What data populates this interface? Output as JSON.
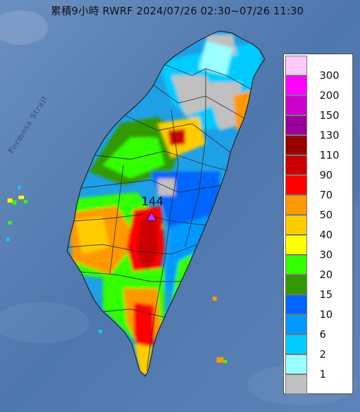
{
  "title": "累積9小時 RWRF 2024/07/26 02:30~07/26 11:30",
  "max_marker": {
    "value": "144"
  },
  "strait_label": "Formosa Strait",
  "colors": {
    "sea": "#4f78ad",
    "land_base": "#1ea0e6",
    "county_lines": "#2b2b2b"
  },
  "legend": {
    "items": [
      {
        "label": "300",
        "color": "#ffc8ff"
      },
      {
        "label": "200",
        "color": "#ff00ff"
      },
      {
        "label": "150",
        "color": "#cc00cc"
      },
      {
        "label": "130",
        "color": "#990099"
      },
      {
        "label": "110",
        "color": "#990000"
      },
      {
        "label": "90",
        "color": "#cc0000"
      },
      {
        "label": "70",
        "color": "#ff0000"
      },
      {
        "label": "50",
        "color": "#ff9900"
      },
      {
        "label": "40",
        "color": "#ffcc00"
      },
      {
        "label": "30",
        "color": "#ffff00"
      },
      {
        "label": "20",
        "color": "#33ff00"
      },
      {
        "label": "15",
        "color": "#339900"
      },
      {
        "label": "10",
        "color": "#0066ff"
      },
      {
        "label": "6",
        "color": "#0099ff"
      },
      {
        "label": "2",
        "color": "#00ccff"
      },
      {
        "label": "1",
        "color": "#99ffff"
      },
      {
        "label": "",
        "color": "#c0c0c0"
      }
    ]
  }
}
